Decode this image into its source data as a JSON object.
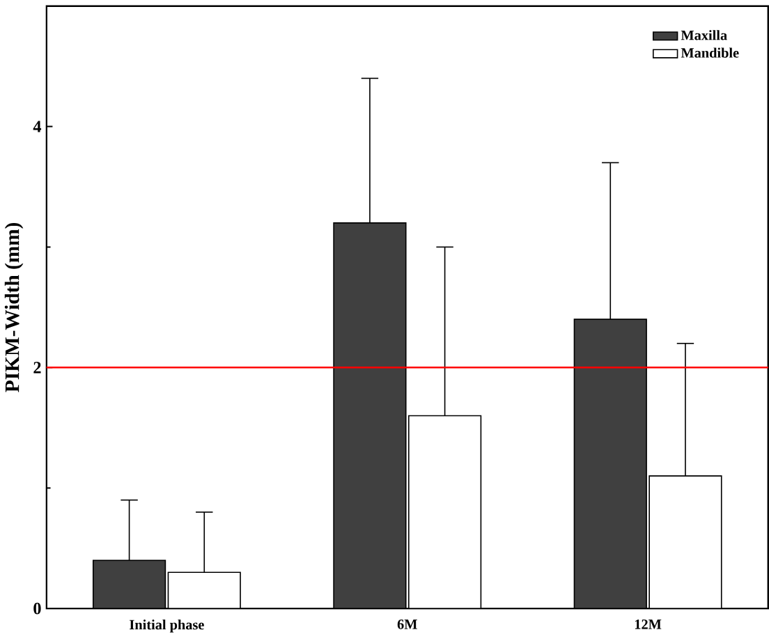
{
  "chart_data": {
    "type": "bar",
    "ylabel": "PIKM-Width (mm)",
    "categories": [
      "Initial phase",
      "6M",
      "12M"
    ],
    "series": [
      {
        "name": "Maxilla",
        "color": "#404040",
        "values": [
          0.4,
          3.2,
          2.4
        ],
        "errors": [
          0.5,
          1.2,
          1.3
        ]
      },
      {
        "name": "Mandible",
        "color": "#ffffff",
        "values": [
          0.3,
          1.6,
          1.1
        ],
        "errors": [
          0.5,
          1.4,
          1.1
        ]
      }
    ],
    "ylim": [
      0,
      5
    ],
    "yticks": [
      0,
      2,
      4
    ],
    "legend": "top right",
    "ref_lines": [
      {
        "axis": "y",
        "value": 2,
        "color": "#ff0000"
      }
    ]
  }
}
